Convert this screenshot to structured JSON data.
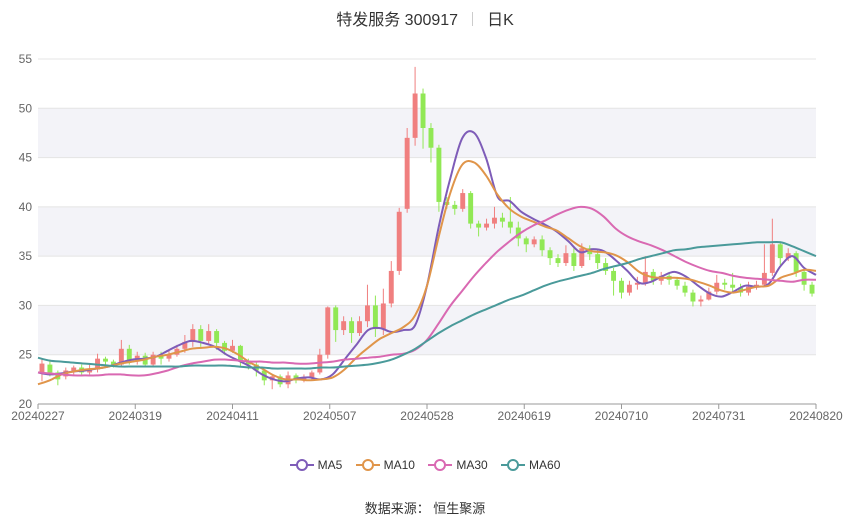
{
  "title": {
    "name": "特发服务 300917",
    "period": "日K"
  },
  "source": "数据来源： 恒生聚源",
  "chart_data": {
    "type": "candlestick",
    "y_ticks": [
      "20",
      "25",
      "30",
      "35",
      "40",
      "45",
      "50",
      "55"
    ],
    "x_ticks": [
      "20240227",
      "20240319",
      "20240411",
      "20240507",
      "20240528",
      "20240619",
      "20240710",
      "20240731",
      "20240820"
    ],
    "ylim": [
      20,
      55
    ],
    "grid": true,
    "legend_position": "bottom-center",
    "colors": {
      "up": "#f07f7f",
      "down": "#91e855",
      "MA5": "#7e5cb8",
      "MA10": "#e0954a",
      "MA30": "#d969b2",
      "MA60": "#4a9a9a",
      "band": "#f3f3f8",
      "grid": "#e4e4e4",
      "axis": "#666666"
    },
    "series": [
      {
        "name": "MA5",
        "color": "#7e5cb8",
        "values": [
          23.2,
          23.0,
          23.1,
          23.3,
          23.4,
          23.6,
          23.8,
          24.2,
          24.5,
          24.6,
          24.8,
          25.4,
          26.0,
          26.4,
          26.2,
          25.8,
          25.0,
          24.4,
          23.8,
          23.0,
          22.5,
          22.3,
          22.6,
          22.7,
          22.5,
          23.0,
          24.5,
          26.0,
          27.5,
          27.7,
          27.3,
          27.5,
          28.0,
          32.0,
          38.0,
          43.0,
          47.0,
          47.5,
          45.0,
          41.0,
          40.6,
          39.5,
          38.8,
          38.2,
          37.5,
          36.5,
          35.4,
          35.7,
          35.5,
          34.6,
          33.5,
          32.3,
          32.4,
          33.0,
          33.4,
          32.9,
          32.0,
          31.2,
          30.9,
          31.4,
          32.0,
          31.9,
          32.2,
          34.0,
          35.0,
          33.8,
          33.1
        ]
      },
      {
        "name": "MA10",
        "color": "#e0954a",
        "values": [
          22.0,
          22.4,
          23.0,
          23.3,
          23.5,
          23.6,
          23.8,
          24.1,
          24.3,
          24.5,
          24.8,
          25.0,
          25.3,
          25.6,
          25.7,
          25.8,
          25.6,
          25.0,
          24.2,
          23.6,
          22.9,
          22.5,
          22.5,
          22.4,
          22.5,
          22.7,
          23.5,
          24.7,
          25.7,
          26.6,
          27.2,
          27.8,
          29.0,
          32.0,
          37.0,
          41.5,
          44.3,
          44.5,
          43.2,
          41.2,
          39.8,
          39.0,
          38.5,
          38.0,
          37.6,
          36.8,
          36.0,
          35.5,
          35.4,
          35.1,
          34.4,
          33.4,
          32.9,
          32.8,
          32.8,
          32.7,
          32.4,
          32.0,
          31.5,
          31.3,
          31.6,
          31.9,
          32.0,
          32.8,
          33.2,
          33.6,
          33.5
        ]
      },
      {
        "name": "MA30",
        "color": "#d969b2",
        "values": [
          23.2,
          23.1,
          23.0,
          22.9,
          22.9,
          22.9,
          23.0,
          23.0,
          22.9,
          22.9,
          23.1,
          23.4,
          23.8,
          24.1,
          24.3,
          24.5,
          24.5,
          24.4,
          24.3,
          24.3,
          24.2,
          24.2,
          24.1,
          24.1,
          24.2,
          24.3,
          24.5,
          24.6,
          24.7,
          24.8,
          25.0,
          25.1,
          25.5,
          26.5,
          28.2,
          30.0,
          31.5,
          33.0,
          34.3,
          35.5,
          36.5,
          37.4,
          38.1,
          38.6,
          39.2,
          39.7,
          40.0,
          39.8,
          39.0,
          37.8,
          37.0,
          36.5,
          36.1,
          35.6,
          35.0,
          34.4,
          33.9,
          33.5,
          33.3,
          33.0,
          32.8,
          32.7,
          32.6,
          32.5,
          32.4,
          32.6,
          32.6
        ]
      },
      {
        "name": "MA60",
        "color": "#4a9a9a",
        "values": [
          24.7,
          24.4,
          24.3,
          24.2,
          24.1,
          24.0,
          23.9,
          23.8,
          23.8,
          23.8,
          23.8,
          23.8,
          23.8,
          23.9,
          23.9,
          23.9,
          23.9,
          23.8,
          23.7,
          23.7,
          23.6,
          23.6,
          23.6,
          23.6,
          23.7,
          23.7,
          23.8,
          23.9,
          24.0,
          24.2,
          24.5,
          25.0,
          25.6,
          26.4,
          27.2,
          27.9,
          28.5,
          29.1,
          29.6,
          30.1,
          30.6,
          31.0,
          31.5,
          32.0,
          32.4,
          32.7,
          33.0,
          33.3,
          33.7,
          34.0,
          34.3,
          34.7,
          35.0,
          35.3,
          35.6,
          35.7,
          35.9,
          36.0,
          36.1,
          36.2,
          36.3,
          36.4,
          36.4,
          36.4,
          36.0,
          35.5,
          35.0
        ]
      }
    ],
    "candles": [
      [
        23.2,
        24.1,
        22.3,
        24.6
      ],
      [
        24.0,
        23.2,
        22.8,
        24.5
      ],
      [
        23.2,
        22.5,
        21.9,
        23.4
      ],
      [
        22.8,
        23.4,
        22.5,
        23.7
      ],
      [
        23.4,
        23.7,
        23.0,
        23.9
      ],
      [
        23.7,
        23.2,
        22.8,
        24.0
      ],
      [
        23.2,
        23.5,
        23.0,
        24.0
      ],
      [
        23.5,
        24.6,
        23.2,
        25.1
      ],
      [
        24.6,
        24.3,
        23.7,
        24.8
      ],
      [
        24.3,
        24.0,
        23.7,
        24.5
      ],
      [
        24.0,
        25.6,
        23.8,
        26.5
      ],
      [
        25.6,
        24.3,
        24.0,
        26.0
      ],
      [
        24.3,
        24.9,
        24.0,
        25.3
      ],
      [
        24.9,
        24.0,
        23.7,
        25.2
      ],
      [
        24.0,
        25.0,
        23.7,
        25.3
      ],
      [
        25.0,
        24.6,
        24.0,
        25.3
      ],
      [
        24.6,
        25.0,
        24.3,
        25.5
      ],
      [
        25.0,
        25.6,
        24.8,
        26.0
      ],
      [
        25.6,
        26.3,
        25.2,
        27.0
      ],
      [
        26.3,
        27.6,
        25.8,
        28.1
      ],
      [
        27.6,
        26.4,
        25.8,
        28.0
      ],
      [
        26.4,
        27.4,
        26.0,
        28.1
      ],
      [
        27.4,
        26.2,
        25.5,
        27.6
      ],
      [
        26.2,
        25.4,
        25.0,
        26.4
      ],
      [
        25.4,
        25.9,
        25.2,
        26.5
      ],
      [
        25.9,
        24.4,
        23.8,
        26.0
      ],
      [
        24.4,
        24.0,
        23.5,
        24.6
      ],
      [
        24.0,
        23.4,
        22.8,
        24.3
      ],
      [
        23.4,
        22.4,
        21.9,
        23.5
      ],
      [
        22.4,
        22.8,
        21.5,
        23.0
      ],
      [
        22.8,
        22.0,
        21.7,
        23.0
      ],
      [
        22.0,
        22.9,
        21.6,
        23.3
      ],
      [
        22.9,
        22.4,
        22.1,
        23.1
      ],
      [
        22.4,
        22.7,
        22.2,
        23.0
      ],
      [
        22.7,
        23.2,
        22.4,
        23.4
      ],
      [
        23.2,
        25.0,
        23.0,
        25.6
      ],
      [
        25.0,
        29.8,
        24.6,
        29.9
      ],
      [
        29.8,
        27.5,
        26.3,
        30.0
      ],
      [
        27.5,
        28.4,
        27.0,
        28.9
      ],
      [
        28.4,
        27.2,
        26.2,
        28.8
      ],
      [
        27.2,
        28.4,
        26.9,
        28.9
      ],
      [
        28.4,
        30.0,
        27.8,
        32.1
      ],
      [
        30.0,
        27.6,
        26.8,
        31.0
      ],
      [
        27.6,
        30.2,
        27.0,
        31.7
      ],
      [
        30.2,
        33.5,
        29.8,
        34.5
      ],
      [
        33.5,
        39.5,
        33.1,
        39.9
      ],
      [
        39.8,
        47.0,
        39.4,
        48.0
      ],
      [
        47.0,
        51.5,
        46.2,
        54.2
      ],
      [
        51.5,
        48.0,
        45.9,
        52.0
      ],
      [
        48.0,
        46.0,
        44.5,
        48.5
      ],
      [
        46.0,
        40.5,
        39.5,
        46.3
      ],
      [
        40.5,
        40.2,
        39.8,
        41.0
      ],
      [
        40.2,
        39.8,
        39.2,
        40.6
      ],
      [
        39.8,
        41.4,
        39.5,
        41.8
      ],
      [
        41.4,
        38.3,
        37.8,
        41.6
      ],
      [
        38.3,
        37.9,
        37.0,
        38.6
      ],
      [
        37.9,
        38.3,
        37.6,
        38.8
      ],
      [
        38.3,
        38.9,
        37.8,
        40.0
      ],
      [
        38.9,
        38.5,
        37.9,
        39.4
      ],
      [
        38.5,
        37.9,
        37.3,
        41.0
      ],
      [
        37.9,
        36.8,
        36.0,
        38.5
      ],
      [
        36.8,
        36.2,
        35.4,
        37.0
      ],
      [
        36.2,
        36.7,
        35.9,
        37.0
      ],
      [
        36.7,
        35.6,
        35.0,
        37.1
      ],
      [
        35.6,
        34.8,
        34.1,
        35.9
      ],
      [
        34.8,
        34.3,
        33.9,
        35.2
      ],
      [
        34.3,
        35.3,
        34.0,
        36.1
      ],
      [
        35.3,
        34.0,
        33.5,
        35.8
      ],
      [
        34.0,
        35.8,
        33.8,
        36.3
      ],
      [
        35.8,
        35.2,
        34.6,
        36.1
      ],
      [
        35.2,
        34.3,
        33.7,
        35.6
      ],
      [
        34.3,
        33.5,
        33.1,
        34.8
      ],
      [
        33.5,
        32.5,
        31.0,
        33.8
      ],
      [
        32.5,
        31.3,
        30.7,
        32.8
      ],
      [
        31.3,
        32.1,
        31.0,
        32.5
      ],
      [
        32.1,
        32.3,
        31.6,
        32.9
      ],
      [
        32.3,
        33.4,
        32.0,
        35.0
      ],
      [
        33.4,
        32.5,
        32.1,
        33.7
      ],
      [
        32.5,
        33.0,
        32.1,
        33.4
      ],
      [
        33.0,
        32.6,
        32.1,
        33.4
      ],
      [
        32.6,
        32.0,
        31.6,
        32.9
      ],
      [
        32.0,
        31.3,
        30.9,
        32.4
      ],
      [
        31.3,
        30.4,
        29.9,
        31.6
      ],
      [
        30.4,
        30.6,
        29.9,
        31.0
      ],
      [
        30.6,
        31.4,
        30.5,
        31.8
      ],
      [
        31.4,
        32.3,
        31.1,
        33.1
      ],
      [
        32.3,
        32.1,
        31.6,
        32.7
      ],
      [
        32.1,
        31.8,
        31.4,
        33.3
      ],
      [
        31.8,
        31.3,
        30.9,
        32.2
      ],
      [
        31.3,
        31.9,
        31.0,
        32.4
      ],
      [
        31.9,
        32.1,
        31.6,
        32.5
      ],
      [
        32.1,
        33.3,
        31.9,
        36.2
      ],
      [
        33.3,
        36.2,
        33.0,
        38.8
      ],
      [
        36.2,
        34.8,
        34.1,
        36.5
      ],
      [
        34.8,
        35.3,
        34.5,
        35.8
      ],
      [
        35.3,
        33.4,
        32.9,
        35.5
      ],
      [
        33.4,
        32.1,
        31.5,
        33.6
      ],
      [
        32.1,
        31.2,
        30.9,
        32.4
      ]
    ]
  }
}
